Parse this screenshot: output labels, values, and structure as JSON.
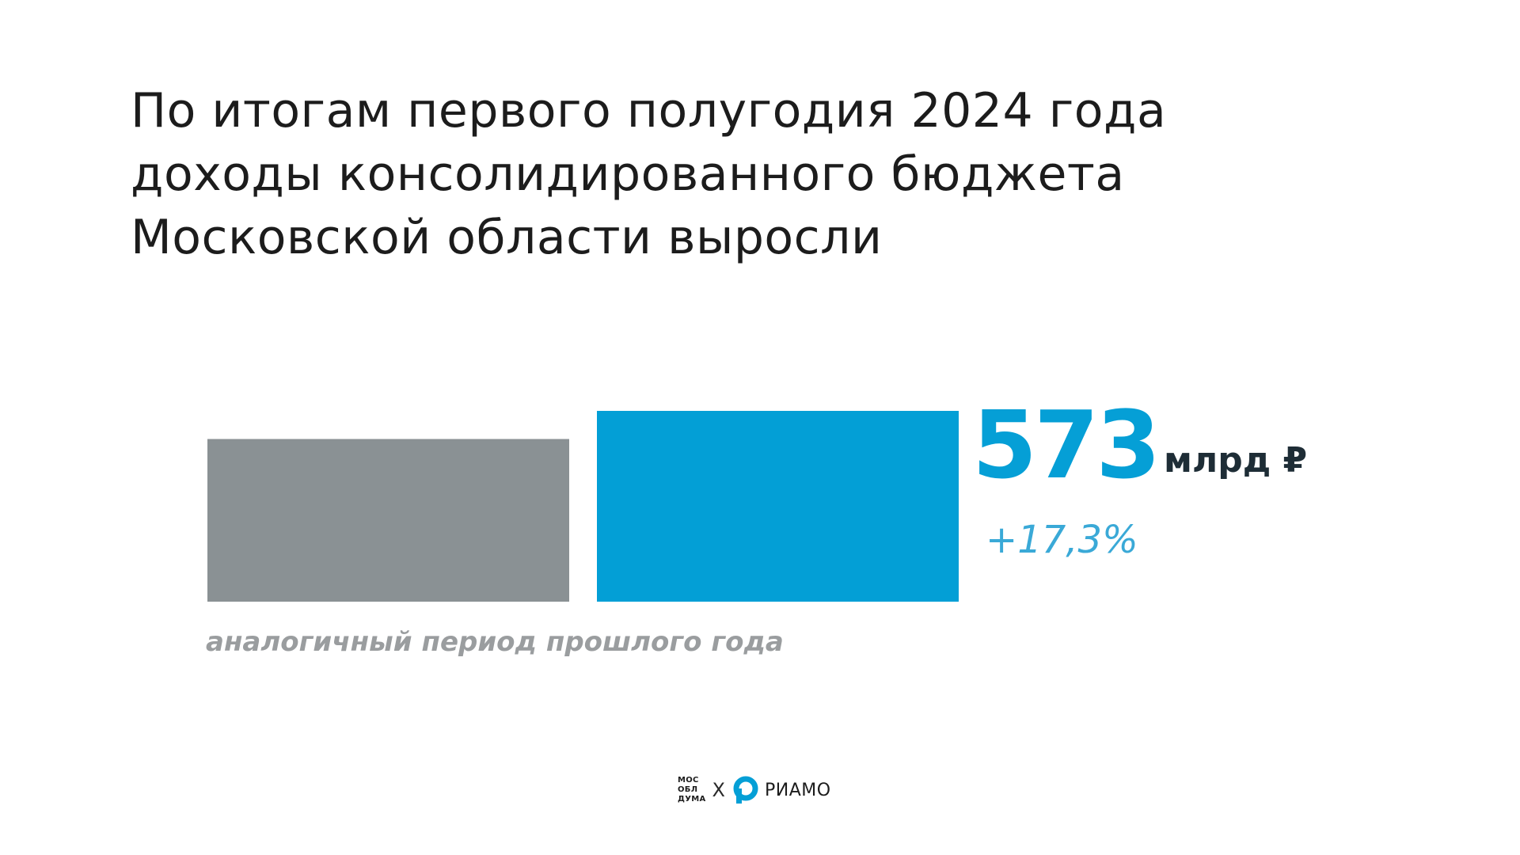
{
  "title": {
    "lines": [
      "По итогам первого полугодия 2024 года",
      "доходы консолидированного бюджета",
      "Московской области выросли"
    ]
  },
  "chart_data": {
    "type": "bar",
    "categories": [
      "аналогичный период прошлого года",
      ""
    ],
    "values": [
      488.5,
      573
    ],
    "colors": [
      "#8a9194",
      "#039fd6"
    ],
    "value_label": "573",
    "unit": "млрд ₽",
    "change_label": "+17,3%",
    "title": "",
    "xlabel": "",
    "ylabel": "",
    "grid": false,
    "legend": "none"
  },
  "footer": {
    "mod_logo_lines": [
      "МОС",
      "ОБЛ",
      "ДУМА"
    ],
    "separator": "X",
    "riamo_text": "РИАМО"
  },
  "icons": {
    "riamo": "riamo-logo-icon"
  }
}
